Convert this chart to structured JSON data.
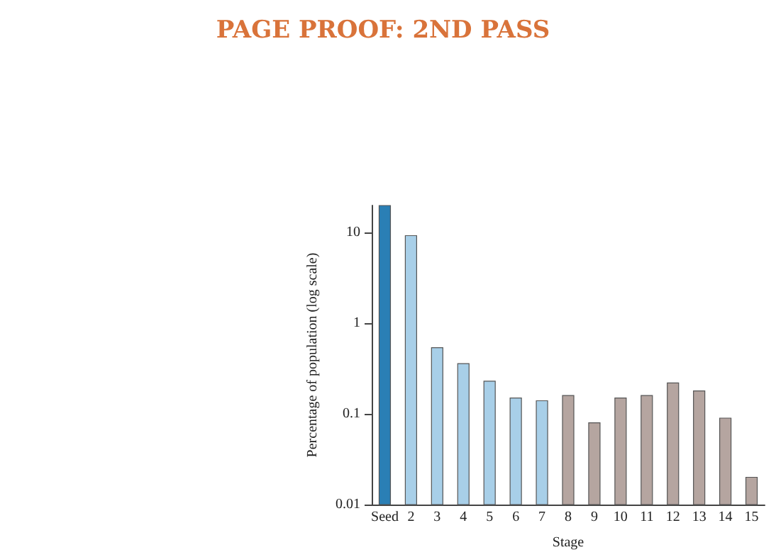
{
  "chart_data": {
    "type": "bar",
    "title": "PAGE PROOF: 2ND PASS",
    "xlabel": "Stage",
    "ylabel": "Percentage of population (log scale)",
    "categories": [
      "Seed",
      "2",
      "3",
      "4",
      "5",
      "6",
      "7",
      "8",
      "9",
      "10",
      "11",
      "12",
      "13",
      "14",
      "15"
    ],
    "values": [
      20,
      9.3,
      0.54,
      0.36,
      0.23,
      0.15,
      0.14,
      0.16,
      0.08,
      0.15,
      0.16,
      0.22,
      0.18,
      0.09,
      0.02
    ],
    "colors": [
      "#2a7fb5",
      "#a8cfe8",
      "#a8cfe8",
      "#a8cfe8",
      "#a8cfe8",
      "#a8cfe8",
      "#a8cfe8",
      "#b5a5a0",
      "#b5a5a0",
      "#b5a5a0",
      "#b5a5a0",
      "#b5a5a0",
      "#b5a5a0",
      "#b5a5a0",
      "#b5a5a0"
    ],
    "log": true,
    "ylim": [
      0.01,
      20
    ],
    "yticks": [
      0.01,
      0.1,
      1,
      10
    ]
  }
}
